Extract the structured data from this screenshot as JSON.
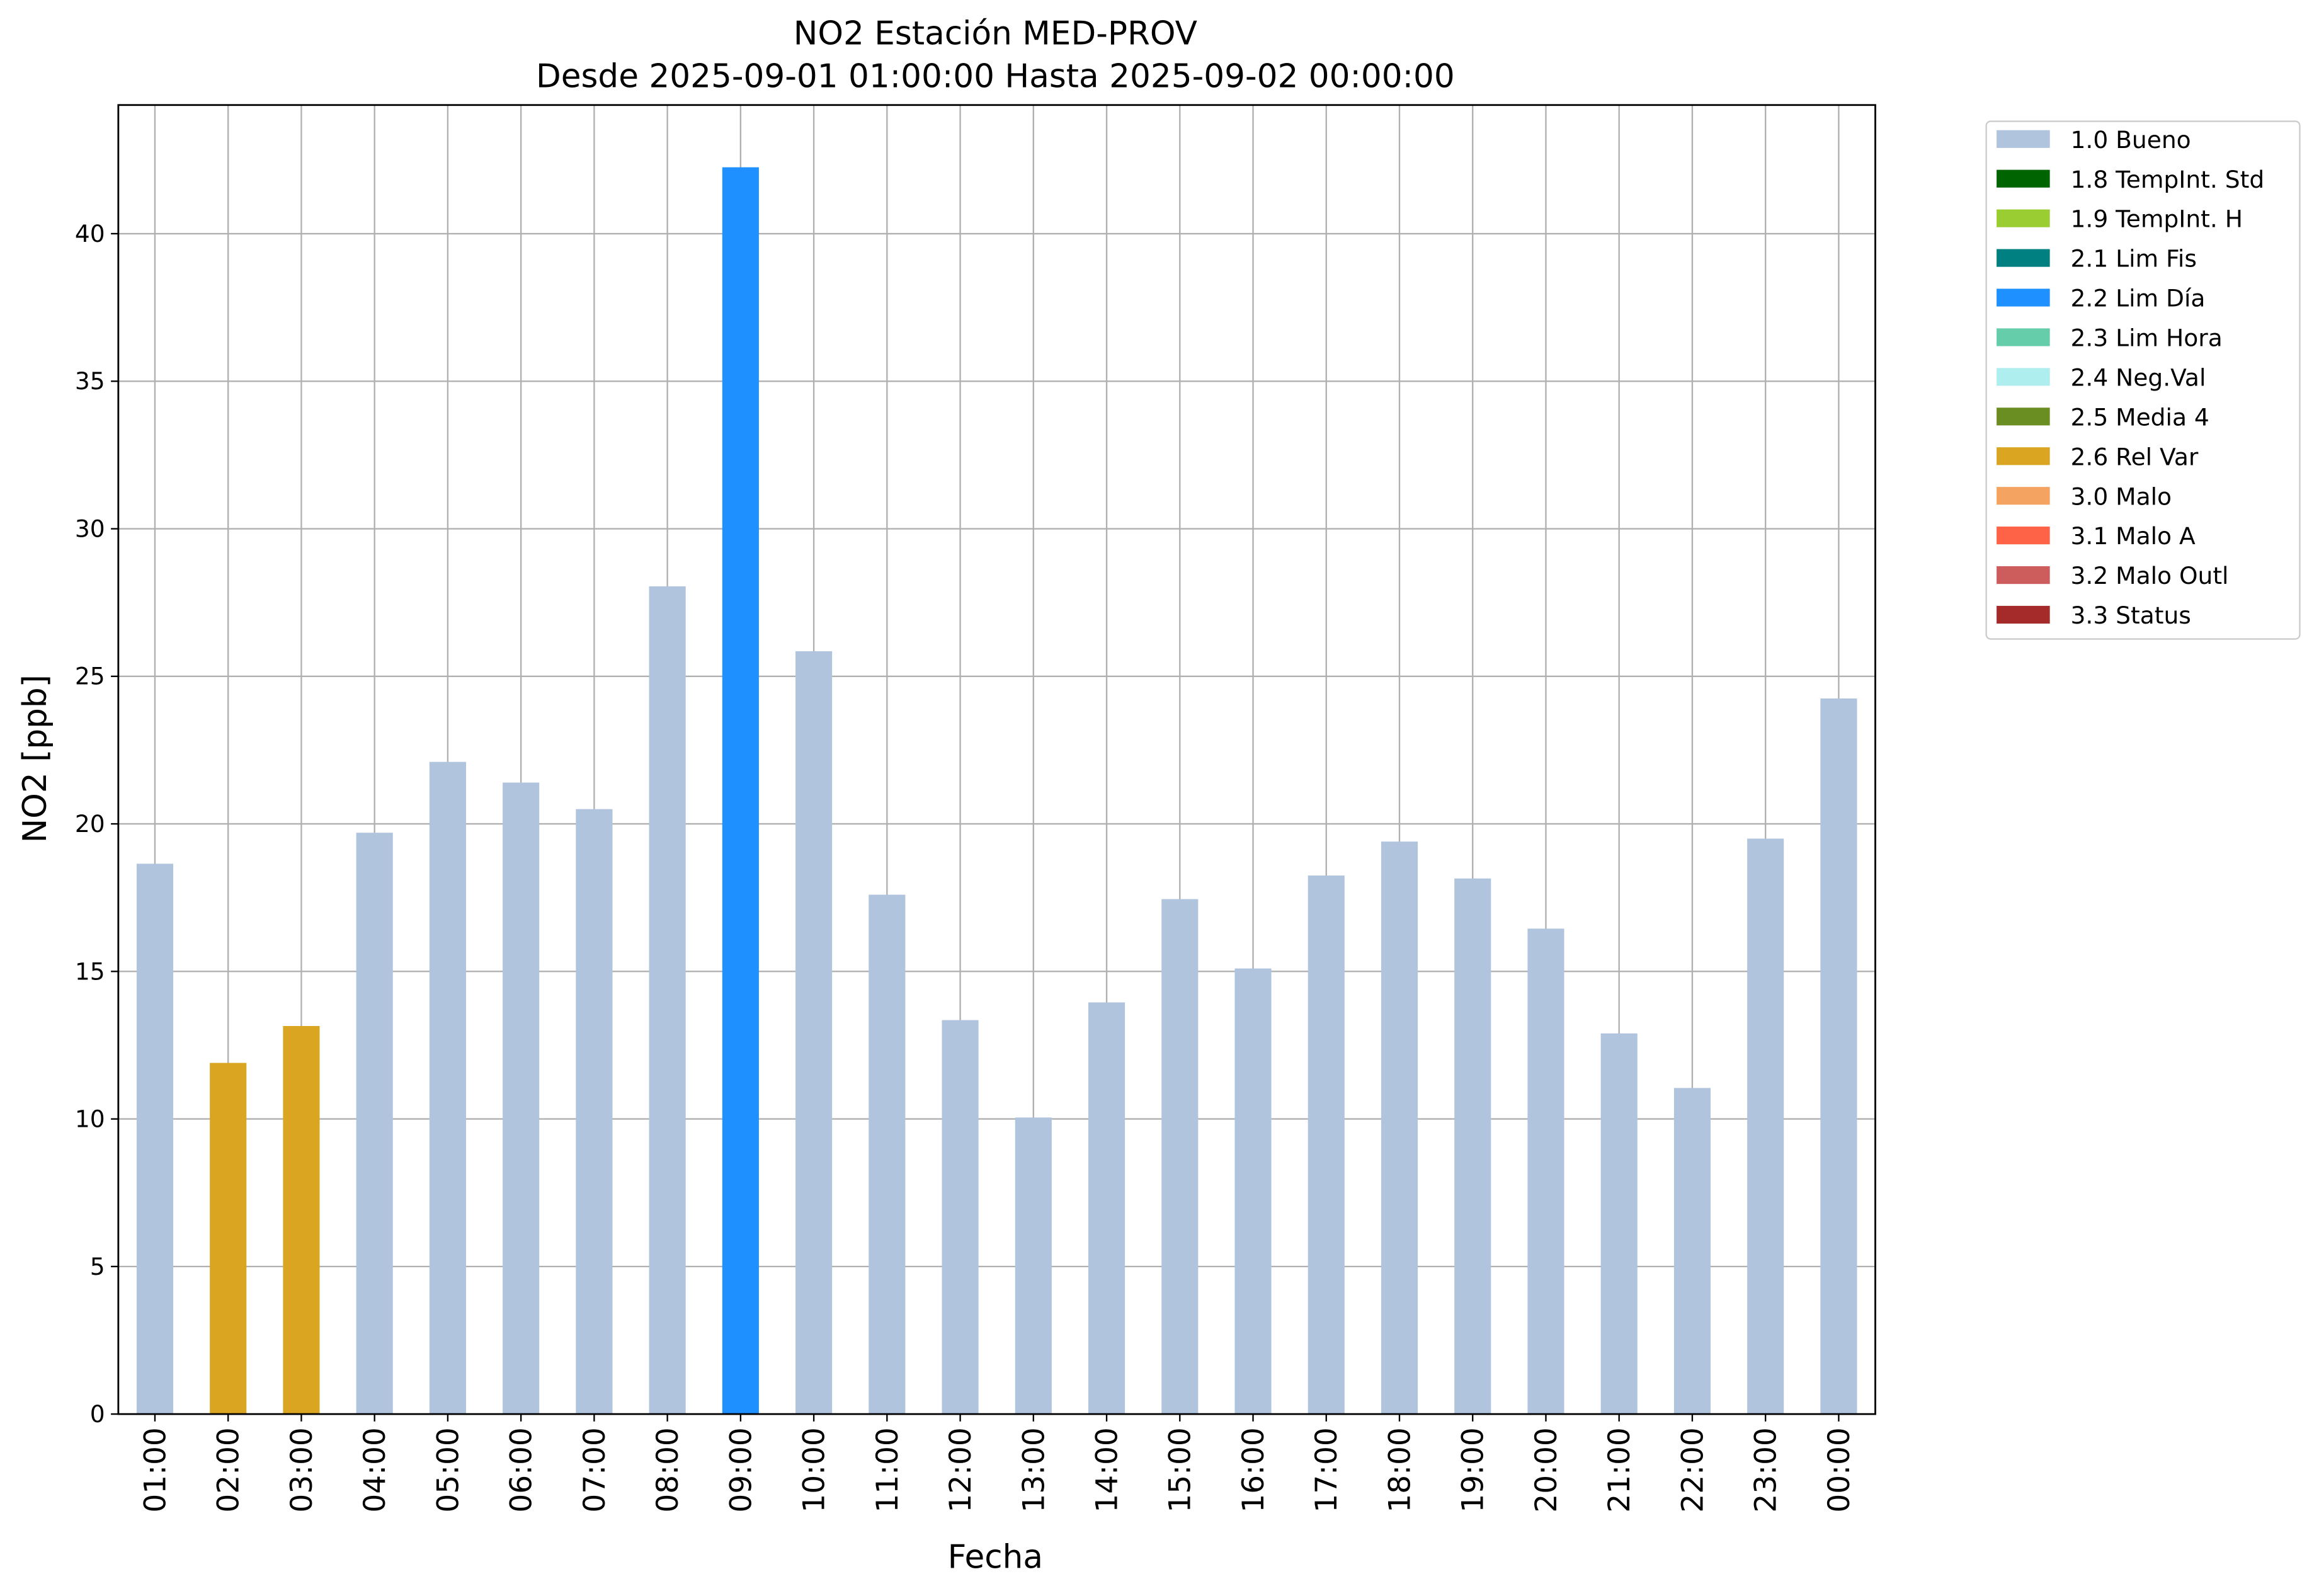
{
  "chart_data": {
    "type": "bar",
    "title": "NO2 Estación MED-PROV",
    "subtitle": "Desde 2025-09-01 01:00:00 Hasta 2025-09-02 00:00:00",
    "x_label": "Fecha",
    "y_label": "NO2 [ppb]",
    "categories": [
      "01:00",
      "02:00",
      "03:00",
      "04:00",
      "05:00",
      "06:00",
      "07:00",
      "08:00",
      "09:00",
      "10:00",
      "11:00",
      "12:00",
      "13:00",
      "14:00",
      "15:00",
      "16:00",
      "17:00",
      "18:00",
      "19:00",
      "20:00",
      "21:00",
      "22:00",
      "23:00",
      "00:00"
    ],
    "values": [
      18.65,
      11.9,
      13.15,
      19.7,
      22.1,
      21.4,
      20.5,
      28.05,
      42.25,
      25.85,
      17.6,
      13.35,
      10.05,
      13.95,
      17.45,
      15.1,
      18.25,
      19.4,
      18.15,
      16.45,
      12.9,
      11.05,
      19.5,
      24.25
    ],
    "colors": [
      "#b0c4de",
      "#daa520",
      "#daa520",
      "#b0c4de",
      "#b0c4de",
      "#b0c4de",
      "#b0c4de",
      "#b0c4de",
      "#1e90ff",
      "#b0c4de",
      "#b0c4de",
      "#b0c4de",
      "#b0c4de",
      "#b0c4de",
      "#b0c4de",
      "#b0c4de",
      "#b0c4de",
      "#b0c4de",
      "#b0c4de",
      "#b0c4de",
      "#b0c4de",
      "#b0c4de",
      "#b0c4de",
      "#b0c4de"
    ],
    "legend": [
      {
        "name": "1.0 Bueno",
        "color": "#b0c4de"
      },
      {
        "name": "1.8 TempInt. Std",
        "color": "#006400"
      },
      {
        "name": "1.9 TempInt. H",
        "color": "#9acd32"
      },
      {
        "name": "2.1 Lim Fis",
        "color": "#008080"
      },
      {
        "name": "2.2 Lim Día",
        "color": "#1e90ff"
      },
      {
        "name": "2.3 Lim Hora",
        "color": "#66cdaa"
      },
      {
        "name": "2.4 Neg.Val",
        "color": "#afeeee"
      },
      {
        "name": "2.5 Media 4",
        "color": "#6b8e23"
      },
      {
        "name": "2.6 Rel Var",
        "color": "#daa520"
      },
      {
        "name": "3.0 Malo",
        "color": "#f4a460"
      },
      {
        "name": "3.1 Malo A",
        "color": "#ff6347"
      },
      {
        "name": "3.2 Malo Outl",
        "color": "#cd5c5c"
      },
      {
        "name": "3.3 Status",
        "color": "#a52a2a"
      }
    ],
    "legend_position": "outside right top",
    "ylim": [
      0,
      44.36
    ],
    "yticks": [
      0,
      5,
      10,
      15,
      20,
      25,
      30,
      35,
      40
    ],
    "grid": true
  }
}
